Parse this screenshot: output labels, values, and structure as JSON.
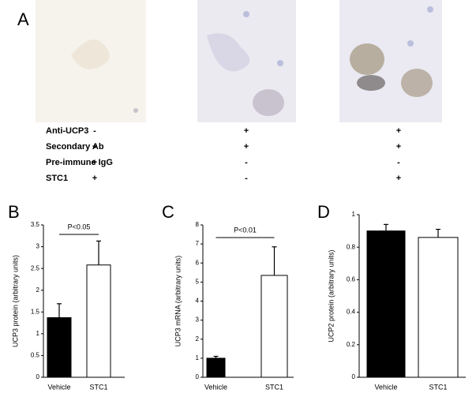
{
  "panel_a": {
    "label": "A",
    "rows": [
      {
        "label": "Anti-UCP3",
        "marks": [
          "-",
          "+",
          "+"
        ]
      },
      {
        "label": "Secondary Ab",
        "marks": [
          "+",
          "+",
          "+"
        ]
      },
      {
        "label": "Pre-immune IgG",
        "marks": [
          "+",
          "-",
          "-"
        ]
      },
      {
        "label": "STC1",
        "marks": [
          "+",
          "-",
          "+"
        ]
      }
    ]
  },
  "chart_data": [
    {
      "type": "bar",
      "panel_label": "B",
      "y_label": "UCP3 protein (arbitrary units)",
      "annotation": "P<0.05",
      "categories": [
        "Vehicle",
        "STC1"
      ],
      "values": [
        1.37,
        2.58
      ],
      "errors": [
        0.32,
        0.55
      ],
      "colors": [
        "#000000",
        "#ffffff"
      ],
      "ylim": [
        0,
        3.5
      ],
      "yticks": [
        0,
        0.5,
        1,
        1.5,
        2,
        2.5,
        3,
        3.5
      ]
    },
    {
      "type": "bar",
      "panel_label": "C",
      "y_label": "UCP3 mRNA (arbitrary units)",
      "annotation": "P<0.01",
      "categories": [
        "Vehicle",
        "STC1"
      ],
      "values": [
        1.0,
        5.35
      ],
      "errors": [
        0.1,
        1.5
      ],
      "colors": [
        "#000000",
        "#ffffff"
      ],
      "ylim": [
        0,
        8
      ],
      "yticks": [
        0,
        1,
        2,
        3,
        4,
        5,
        6,
        7,
        8
      ]
    },
    {
      "type": "bar",
      "panel_label": "D",
      "y_label": "UCP2 protein (arbitrary units)",
      "categories": [
        "Vehicle",
        "STC1"
      ],
      "values": [
        0.9,
        0.86
      ],
      "errors": [
        0.04,
        0.05
      ],
      "colors": [
        "#000000",
        "#ffffff"
      ],
      "ylim": [
        0,
        1
      ],
      "yticks": [
        0,
        0.2,
        0.4,
        0.6,
        0.8,
        1
      ]
    }
  ]
}
